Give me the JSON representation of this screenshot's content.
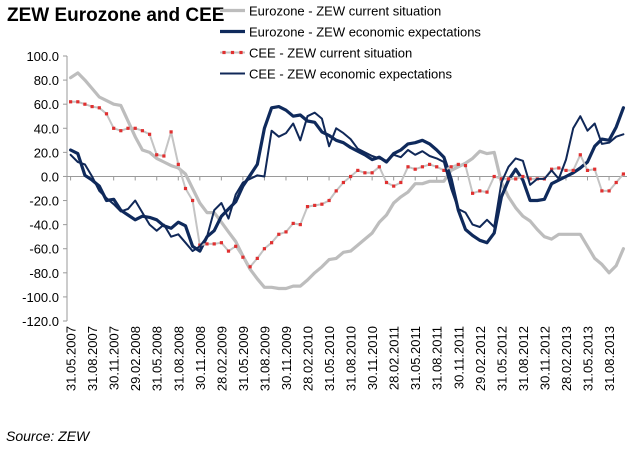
{
  "title": "ZEW Eurozone and CEE",
  "source": "Source: ZEW",
  "chart_data": {
    "type": "line",
    "ylim": [
      -120,
      100
    ],
    "ytick_step": 20,
    "ytick_labels": [
      "100.0",
      "80.0",
      "60.0",
      "40.0",
      "20.0",
      "0.0",
      "-20.0",
      "-40.0",
      "-60.0",
      "-80.0",
      "-100.0",
      "-120.0"
    ],
    "xtick_labels": [
      "31.05.2007",
      "31.08.2007",
      "30.11.2007",
      "29.02.2008",
      "31.05.2008",
      "31.08.2008",
      "30.11.2008",
      "28.02.2009",
      "31.05.2009",
      "31.08.2009",
      "30.11.2009",
      "28.02.2010",
      "31.05.2010",
      "31.08.2010",
      "30.11.2010",
      "28.02.2011",
      "31.05.2011",
      "31.08.2011",
      "30.11.2011",
      "29.02.2012",
      "31.05.2012",
      "31.08.2012",
      "30.11.2012",
      "28.02.2013",
      "31.05.2013",
      "31.08.2013"
    ],
    "months_per_tick": 3,
    "n_months": 78,
    "colors": {
      "eurozone_current": "#bdbdbd",
      "eurozone_expectations": "#0f2a5c",
      "cee_current_line": "#c4c4c4",
      "cee_current_marker": "#e03030",
      "cee_expectations": "#102858",
      "axis": "#9a9a9a"
    },
    "series": [
      {
        "name": "Eurozone - ZEW current situation",
        "style": "thick-grey",
        "values": [
          82,
          86,
          80,
          73,
          66,
          63,
          60,
          59,
          46,
          33,
          22,
          20,
          15,
          12,
          9,
          7,
          2,
          -10,
          -22,
          -30,
          -30,
          -38,
          -46,
          -54,
          -66,
          -77,
          -85,
          -92,
          -92,
          -93,
          -93,
          -91,
          -91,
          -86,
          -80,
          -75,
          -69,
          -68,
          -63,
          -62,
          -57,
          -52,
          -47,
          -38,
          -32,
          -22,
          -17,
          -13,
          -6,
          -6,
          -4,
          -4,
          -4,
          5,
          8,
          11,
          15,
          21,
          19,
          20,
          -5,
          -17,
          -26,
          -33,
          -37,
          -44,
          -50,
          -52,
          -48,
          -48,
          -48,
          -48,
          -58,
          -68,
          -73,
          -80,
          -74,
          -60
        ]
      },
      {
        "name": "Eurozone - ZEW economic expectations",
        "style": "thick-navy",
        "values": [
          22,
          19,
          1,
          -3,
          -8,
          -20,
          -19,
          -28,
          -32,
          -36,
          -33,
          -34,
          -36,
          -41,
          -43,
          -38,
          -41,
          -58,
          -62,
          -50,
          -45,
          -33,
          -27,
          -21,
          -8,
          1,
          10,
          40,
          57,
          58,
          55,
          50,
          51,
          46,
          45,
          37,
          34,
          30,
          28,
          24,
          21,
          18,
          14,
          16,
          12,
          19,
          22,
          27,
          28,
          30,
          27,
          22,
          16,
          -2,
          -28,
          -44,
          -49,
          -53,
          -55,
          -47,
          -17,
          -3,
          6,
          -3,
          -20,
          -20,
          -19,
          -6,
          -3,
          0,
          3,
          7,
          12,
          25,
          31,
          30,
          41,
          57
        ]
      },
      {
        "name": "CEE - ZEW current situation",
        "style": "grey-red-markers",
        "values": [
          62,
          62,
          60,
          58,
          57,
          52,
          40,
          38,
          40,
          40,
          38,
          35,
          18,
          17,
          37,
          10,
          -10,
          -20,
          -57,
          -56,
          -56,
          -55,
          -62,
          -58,
          -67,
          -75,
          -68,
          -60,
          -55,
          -48,
          -46,
          -39,
          -40,
          -25,
          -24,
          -23,
          -20,
          -12,
          -5,
          0,
          5,
          3,
          3,
          8,
          -5,
          -8,
          -5,
          8,
          6,
          8,
          10,
          8,
          5,
          8,
          10,
          9,
          -14,
          -12,
          -13,
          0,
          -2,
          -2,
          -2,
          0,
          -2,
          -2,
          -2,
          6,
          7,
          5,
          5,
          18,
          5,
          6,
          -12,
          -12,
          -5,
          2
        ]
      },
      {
        "name": "CEE - ZEW economic expectations",
        "style": "navy",
        "values": [
          18,
          12,
          10,
          0,
          -12,
          -18,
          -23,
          -29,
          -27,
          -20,
          -30,
          -40,
          -45,
          -40,
          -50,
          -48,
          -55,
          -62,
          -58,
          -50,
          -28,
          -22,
          -35,
          -15,
          -5,
          -2,
          1,
          0,
          38,
          33,
          36,
          44,
          30,
          50,
          53,
          48,
          25,
          40,
          36,
          31,
          23,
          20,
          17,
          15,
          13,
          18,
          16,
          22,
          18,
          21,
          17,
          15,
          12,
          -10,
          -27,
          -30,
          -40,
          -42,
          -36,
          -42,
          -5,
          8,
          15,
          13,
          -7,
          -2,
          -2,
          5,
          -2,
          14,
          40,
          50,
          38,
          44,
          27,
          28,
          33,
          35
        ]
      }
    ]
  }
}
